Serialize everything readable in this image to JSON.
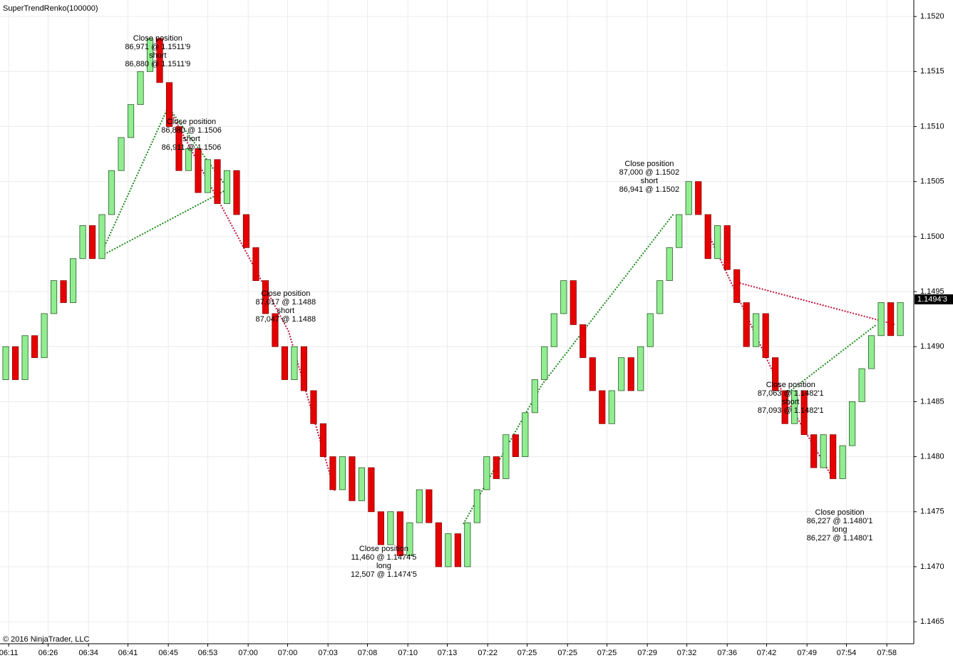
{
  "chart_data": {
    "type": "candlestick",
    "title": "SuperTrendRenko(100000)",
    "copyright": "© 2016 NinjaTrader, LLC",
    "up_color": "#90ee90",
    "down_color": "#e60000",
    "grid": true,
    "xlim": [
      -0.6,
      94.4
    ],
    "ylim": [
      1.1463,
      1.15215
    ],
    "yticks": [
      1.1465,
      {
        "value": 1.147,
        "label": "1.1470"
      },
      1.1475,
      {
        "value": 1.148,
        "label": "1.1480"
      },
      1.1485,
      {
        "value": 1.149,
        "label": "1.1490"
      },
      1.1495,
      {
        "value": 1.15,
        "label": "1.1500"
      },
      1.1505,
      {
        "value": 1.151,
        "label": "1.1510"
      },
      1.1515,
      {
        "value": 1.152,
        "label": "1.1520"
      }
    ],
    "xticks": [
      {
        "value": 0.3,
        "label": "06:11"
      },
      {
        "value": 4.4,
        "label": "06:26"
      },
      {
        "value": 8.6,
        "label": "06:34"
      },
      {
        "value": 12.7,
        "label": "06:41"
      },
      {
        "value": 16.9,
        "label": "06:45"
      },
      {
        "value": 21,
        "label": "06:53"
      },
      {
        "value": 25.2,
        "label": "07:00"
      },
      {
        "value": 29.3,
        "label": "07:00"
      },
      {
        "value": 33.5,
        "label": "07:03"
      },
      {
        "value": 37.6,
        "label": "07:08"
      },
      {
        "value": 41.8,
        "label": "07:10"
      },
      {
        "value": 45.9,
        "label": "07:13"
      },
      {
        "value": 50.1,
        "label": "07:22"
      },
      {
        "value": 54.2,
        "label": "07:25"
      },
      {
        "value": 58.4,
        "label": "07:25"
      },
      {
        "value": 62.5,
        "label": "07:25"
      },
      {
        "value": 66.7,
        "label": "07:29"
      },
      {
        "value": 70.8,
        "label": "07:32"
      },
      {
        "value": 75,
        "label": "07:36"
      },
      {
        "value": 79.1,
        "label": "07:42"
      },
      {
        "value": 83.3,
        "label": "07:49"
      },
      {
        "value": 87.4,
        "label": "07:54"
      },
      {
        "value": 91.6,
        "label": "07:58"
      }
    ],
    "last_price": {
      "value": 1.14943,
      "label": "1.1494'3"
    },
    "open": [
      1.1487,
      1.149,
      1.1487,
      1.1491,
      1.1489,
      1.1493,
      1.1496,
      1.1494,
      1.1498,
      1.1501,
      1.1498,
      1.1502,
      1.1506,
      1.1509,
      1.1512,
      1.1515,
      1.1518,
      1.1514,
      1.151,
      1.1506,
      1.1508,
      1.1504,
      1.1507,
      1.1503,
      1.1506,
      1.1502,
      1.1499,
      1.1496,
      1.1493,
      1.149,
      1.1487,
      1.149,
      1.1486,
      1.1483,
      1.148,
      1.1477,
      1.148,
      1.1476,
      1.1479,
      1.1475,
      1.1472,
      1.1475,
      1.1471,
      1.1474,
      1.1477,
      1.1474,
      1.147,
      1.1473,
      1.147,
      1.1474,
      1.1477,
      1.148,
      1.1478,
      1.1482,
      1.148,
      1.1484,
      1.1487,
      1.149,
      1.1493,
      1.1496,
      1.1492,
      1.1489,
      1.1486,
      1.1483,
      1.1486,
      1.1489,
      1.1486,
      1.149,
      1.1493,
      1.1496,
      1.1499,
      1.1502,
      1.1505,
      1.1502,
      1.1498,
      1.1501,
      1.1497,
      1.1494,
      1.149,
      1.1493,
      1.1489,
      1.1486,
      1.1483,
      1.1486,
      1.1482,
      1.1479,
      1.1482,
      1.1478,
      1.1481,
      1.1485,
      1.1488,
      1.1491,
      1.1494,
      1.1491
    ],
    "close": [
      1.149,
      1.1487,
      1.1491,
      1.1489,
      1.1493,
      1.1496,
      1.1494,
      1.1498,
      1.1501,
      1.1498,
      1.1502,
      1.1506,
      1.1509,
      1.1512,
      1.1515,
      1.1518,
      1.1514,
      1.151,
      1.1506,
      1.1508,
      1.1504,
      1.1507,
      1.1503,
      1.1506,
      1.1502,
      1.1499,
      1.1496,
      1.1493,
      1.149,
      1.1487,
      1.149,
      1.1486,
      1.1483,
      1.148,
      1.1477,
      1.148,
      1.1476,
      1.1479,
      1.1475,
      1.1472,
      1.1475,
      1.1471,
      1.1474,
      1.1477,
      1.1474,
      1.147,
      1.1473,
      1.147,
      1.1474,
      1.1477,
      1.148,
      1.1478,
      1.1482,
      1.148,
      1.1484,
      1.1487,
      1.149,
      1.1493,
      1.1496,
      1.1492,
      1.1489,
      1.1486,
      1.1483,
      1.1486,
      1.1489,
      1.1486,
      1.149,
      1.1493,
      1.1496,
      1.1499,
      1.1502,
      1.1505,
      1.1502,
      1.1498,
      1.1501,
      1.1497,
      1.1494,
      1.149,
      1.1493,
      1.1489,
      1.1486,
      1.1483,
      1.1486,
      1.1482,
      1.1479,
      1.1482,
      1.1478,
      1.1481,
      1.1485,
      1.1488,
      1.1491,
      1.1494,
      1.1491,
      1.1494
    ],
    "annotations": [
      {
        "x": 15.8,
        "y": 1.1518,
        "lines": [
          "Close position",
          "86,971 @ 1.1511'9",
          "short",
          "86,880 @ 1.1511'9"
        ]
      },
      {
        "x": 19.3,
        "y": 1.15104,
        "lines": [
          "Close position",
          "86,880 @ 1.1506",
          "short",
          "86,911 @ 1.1506"
        ]
      },
      {
        "x": 29.1,
        "y": 1.14948,
        "lines": [
          "Close position",
          "87,017 @ 1.1488",
          "short",
          "87,047 @ 1.1488"
        ]
      },
      {
        "x": 39.3,
        "y": 1.14716,
        "lines": [
          "Close position",
          "11,460 @ 1.1474'5",
          "long",
          "12,507 @ 1.1474'5"
        ]
      },
      {
        "x": 66.9,
        "y": 1.15066,
        "lines": [
          "Close position",
          "87,000 @ 1.1502",
          "short",
          "86,941 @ 1.1502"
        ]
      },
      {
        "x": 81.6,
        "y": 1.14865,
        "lines": [
          "Close position",
          "87,063 @ 1.1482'1",
          "short",
          "87,093 @ 1.1482'1"
        ]
      },
      {
        "x": 86.7,
        "y": 1.14749,
        "lines": [
          "Close position",
          "86,227 @ 1.1480'1",
          "long",
          "86,227 @ 1.1480'1"
        ]
      }
    ]
  }
}
